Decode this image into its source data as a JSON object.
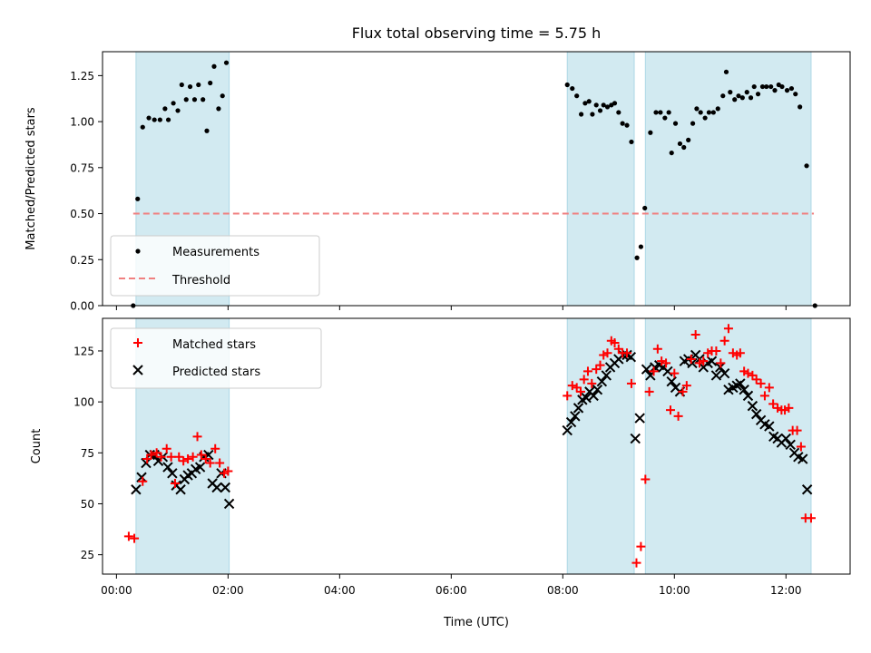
{
  "chart_data": {
    "type": "scatter",
    "title": "Flux total observing time = 5.75 h",
    "xlabel": "Time (UTC)",
    "x_ticks": [
      "00:00",
      "02:00",
      "04:00",
      "06:00",
      "08:00",
      "10:00",
      "12:00"
    ],
    "xlim_hours": [
      -0.25,
      13.15
    ],
    "shaded_intervals_hours": [
      [
        0.35,
        2.02
      ],
      [
        8.08,
        9.28
      ],
      [
        9.48,
        12.45
      ]
    ],
    "colors": {
      "shade": "#add8e6",
      "measurements": "#000000",
      "threshold": "#f08080",
      "matched": "#ff0000",
      "predicted": "#000000"
    },
    "top_panel": {
      "ylabel": "Matched/Predicted stars",
      "ylim": [
        0,
        1.38
      ],
      "y_ticks": [
        "0.00",
        "0.25",
        "0.50",
        "0.75",
        "1.00",
        "1.25"
      ],
      "legend": [
        "Measurements",
        "Threshold"
      ],
      "legend_position": "lower-left",
      "threshold": {
        "value": 0.5,
        "x_range_hours": [
          0.3,
          12.5
        ]
      },
      "measurements": [
        [
          0.3,
          0.0
        ],
        [
          0.38,
          0.58
        ],
        [
          0.47,
          0.97
        ],
        [
          0.58,
          1.02
        ],
        [
          0.68,
          1.01
        ],
        [
          0.78,
          1.01
        ],
        [
          0.87,
          1.07
        ],
        [
          0.93,
          1.01
        ],
        [
          1.02,
          1.1
        ],
        [
          1.1,
          1.06
        ],
        [
          1.17,
          1.2
        ],
        [
          1.25,
          1.12
        ],
        [
          1.32,
          1.19
        ],
        [
          1.4,
          1.12
        ],
        [
          1.47,
          1.2
        ],
        [
          1.55,
          1.12
        ],
        [
          1.62,
          0.95
        ],
        [
          1.68,
          1.21
        ],
        [
          1.75,
          1.3
        ],
        [
          1.83,
          1.07
        ],
        [
          1.9,
          1.14
        ],
        [
          1.97,
          1.32
        ],
        [
          8.08,
          1.2
        ],
        [
          8.17,
          1.18
        ],
        [
          8.25,
          1.14
        ],
        [
          8.33,
          1.04
        ],
        [
          8.4,
          1.1
        ],
        [
          8.47,
          1.11
        ],
        [
          8.53,
          1.04
        ],
        [
          8.6,
          1.09
        ],
        [
          8.67,
          1.06
        ],
        [
          8.73,
          1.09
        ],
        [
          8.8,
          1.08
        ],
        [
          8.87,
          1.09
        ],
        [
          8.93,
          1.1
        ],
        [
          9.0,
          1.05
        ],
        [
          9.07,
          0.99
        ],
        [
          9.15,
          0.98
        ],
        [
          9.23,
          0.89
        ],
        [
          9.33,
          0.26
        ],
        [
          9.4,
          0.32
        ],
        [
          9.47,
          0.53
        ],
        [
          9.57,
          0.94
        ],
        [
          9.67,
          1.05
        ],
        [
          9.75,
          1.05
        ],
        [
          9.83,
          1.02
        ],
        [
          9.9,
          1.05
        ],
        [
          9.95,
          0.83
        ],
        [
          10.02,
          0.99
        ],
        [
          10.1,
          0.88
        ],
        [
          10.17,
          0.86
        ],
        [
          10.25,
          0.9
        ],
        [
          10.33,
          0.99
        ],
        [
          10.4,
          1.07
        ],
        [
          10.47,
          1.05
        ],
        [
          10.55,
          1.02
        ],
        [
          10.62,
          1.05
        ],
        [
          10.7,
          1.05
        ],
        [
          10.78,
          1.07
        ],
        [
          10.87,
          1.14
        ],
        [
          10.93,
          1.27
        ],
        [
          11.0,
          1.16
        ],
        [
          11.08,
          1.12
        ],
        [
          11.15,
          1.14
        ],
        [
          11.22,
          1.13
        ],
        [
          11.3,
          1.16
        ],
        [
          11.37,
          1.13
        ],
        [
          11.43,
          1.19
        ],
        [
          11.5,
          1.15
        ],
        [
          11.58,
          1.19
        ],
        [
          11.65,
          1.19
        ],
        [
          11.73,
          1.19
        ],
        [
          11.8,
          1.17
        ],
        [
          11.87,
          1.2
        ],
        [
          11.93,
          1.19
        ],
        [
          12.02,
          1.17
        ],
        [
          12.1,
          1.18
        ],
        [
          12.17,
          1.15
        ],
        [
          12.25,
          1.08
        ],
        [
          12.37,
          0.76
        ],
        [
          12.52,
          0.0
        ]
      ]
    },
    "bottom_panel": {
      "ylabel": "Count",
      "ylim": [
        15.5,
        141
      ],
      "y_ticks": [
        "25",
        "50",
        "75",
        "100",
        "125"
      ],
      "legend": [
        "Matched stars",
        "Predicted stars"
      ],
      "legend_position": "upper-left",
      "matched": [
        [
          0.22,
          34
        ],
        [
          0.32,
          33
        ],
        [
          0.47,
          61
        ],
        [
          0.55,
          72
        ],
        [
          0.62,
          74
        ],
        [
          0.72,
          75
        ],
        [
          0.8,
          73
        ],
        [
          0.9,
          77
        ],
        [
          0.98,
          73
        ],
        [
          1.05,
          60
        ],
        [
          1.12,
          73
        ],
        [
          1.2,
          71
        ],
        [
          1.28,
          72
        ],
        [
          1.37,
          73
        ],
        [
          1.45,
          83
        ],
        [
          1.52,
          74
        ],
        [
          1.6,
          72
        ],
        [
          1.68,
          70
        ],
        [
          1.77,
          77
        ],
        [
          1.85,
          70
        ],
        [
          1.93,
          65
        ],
        [
          2.0,
          66
        ],
        [
          8.08,
          103
        ],
        [
          8.17,
          108
        ],
        [
          8.25,
          107
        ],
        [
          8.32,
          105
        ],
        [
          8.38,
          111
        ],
        [
          8.45,
          115
        ],
        [
          8.52,
          109
        ],
        [
          8.6,
          116
        ],
        [
          8.67,
          118
        ],
        [
          8.73,
          123
        ],
        [
          8.8,
          124
        ],
        [
          8.87,
          130
        ],
        [
          8.93,
          129
        ],
        [
          9.0,
          126
        ],
        [
          9.07,
          124
        ],
        [
          9.15,
          124
        ],
        [
          9.23,
          109
        ],
        [
          9.32,
          21
        ],
        [
          9.4,
          29
        ],
        [
          9.48,
          62
        ],
        [
          9.55,
          105
        ],
        [
          9.63,
          115
        ],
        [
          9.7,
          126
        ],
        [
          9.77,
          120
        ],
        [
          9.85,
          119
        ],
        [
          9.93,
          96
        ],
        [
          10.0,
          114
        ],
        [
          10.07,
          93
        ],
        [
          10.15,
          105
        ],
        [
          10.22,
          108
        ],
        [
          10.3,
          121
        ],
        [
          10.38,
          133
        ],
        [
          10.45,
          119
        ],
        [
          10.52,
          120
        ],
        [
          10.6,
          124
        ],
        [
          10.67,
          125
        ],
        [
          10.75,
          125
        ],
        [
          10.83,
          119
        ],
        [
          10.9,
          130
        ],
        [
          10.97,
          136
        ],
        [
          11.05,
          124
        ],
        [
          11.12,
          123
        ],
        [
          11.18,
          124
        ],
        [
          11.25,
          115
        ],
        [
          11.32,
          114
        ],
        [
          11.4,
          113
        ],
        [
          11.47,
          111
        ],
        [
          11.55,
          109
        ],
        [
          11.62,
          103
        ],
        [
          11.7,
          107
        ],
        [
          11.77,
          99
        ],
        [
          11.85,
          97
        ],
        [
          11.92,
          96
        ],
        [
          11.98,
          96
        ],
        [
          12.05,
          97
        ],
        [
          12.12,
          86
        ],
        [
          12.2,
          86
        ],
        [
          12.27,
          78
        ],
        [
          12.35,
          43
        ],
        [
          12.45,
          43
        ]
      ],
      "predicted": [
        [
          0.35,
          57
        ],
        [
          0.45,
          63
        ],
        [
          0.53,
          70
        ],
        [
          0.6,
          74
        ],
        [
          0.68,
          74
        ],
        [
          0.75,
          71
        ],
        [
          0.83,
          73
        ],
        [
          0.92,
          68
        ],
        [
          1.0,
          65
        ],
        [
          1.07,
          59
        ],
        [
          1.15,
          57
        ],
        [
          1.22,
          62
        ],
        [
          1.28,
          64
        ],
        [
          1.35,
          65
        ],
        [
          1.42,
          67
        ],
        [
          1.5,
          68
        ],
        [
          1.57,
          73
        ],
        [
          1.65,
          74
        ],
        [
          1.72,
          60
        ],
        [
          1.8,
          58
        ],
        [
          1.88,
          65
        ],
        [
          1.95,
          58
        ],
        [
          2.02,
          50
        ],
        [
          8.08,
          86
        ],
        [
          8.15,
          90
        ],
        [
          8.22,
          93
        ],
        [
          8.28,
          97
        ],
        [
          8.35,
          101
        ],
        [
          8.42,
          102
        ],
        [
          8.48,
          105
        ],
        [
          8.55,
          103
        ],
        [
          8.62,
          106
        ],
        [
          8.7,
          110
        ],
        [
          8.78,
          113
        ],
        [
          8.85,
          117
        ],
        [
          8.93,
          119
        ],
        [
          9.0,
          121
        ],
        [
          9.08,
          123
        ],
        [
          9.15,
          123
        ],
        [
          9.22,
          122
        ],
        [
          9.3,
          82
        ],
        [
          9.38,
          92
        ],
        [
          9.5,
          116
        ],
        [
          9.57,
          113
        ],
        [
          9.65,
          117
        ],
        [
          9.73,
          118
        ],
        [
          9.8,
          117
        ],
        [
          9.88,
          115
        ],
        [
          9.95,
          110
        ],
        [
          10.02,
          107
        ],
        [
          10.1,
          105
        ],
        [
          10.18,
          120
        ],
        [
          10.25,
          121
        ],
        [
          10.32,
          119
        ],
        [
          10.38,
          123
        ],
        [
          10.45,
          121
        ],
        [
          10.52,
          117
        ],
        [
          10.6,
          119
        ],
        [
          10.67,
          120
        ],
        [
          10.75,
          113
        ],
        [
          10.82,
          117
        ],
        [
          10.9,
          114
        ],
        [
          10.97,
          106
        ],
        [
          11.05,
          107
        ],
        [
          11.12,
          108
        ],
        [
          11.18,
          109
        ],
        [
          11.25,
          106
        ],
        [
          11.32,
          103
        ],
        [
          11.4,
          98
        ],
        [
          11.47,
          94
        ],
        [
          11.55,
          91
        ],
        [
          11.62,
          89
        ],
        [
          11.7,
          88
        ],
        [
          11.78,
          83
        ],
        [
          11.85,
          82
        ],
        [
          11.92,
          80
        ],
        [
          12.0,
          82
        ],
        [
          12.08,
          79
        ],
        [
          12.15,
          75
        ],
        [
          12.22,
          73
        ],
        [
          12.3,
          72
        ],
        [
          12.38,
          57
        ]
      ]
    }
  }
}
